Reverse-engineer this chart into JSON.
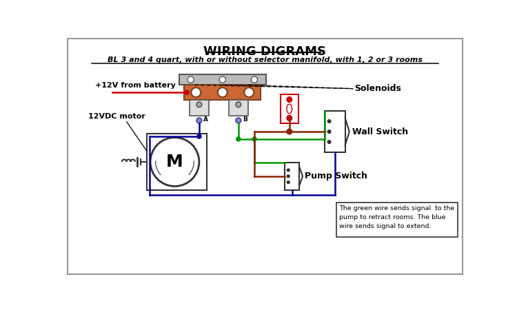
{
  "title": "WIRING DIGRAMS",
  "subtitle": "BL 3 and 4 quart, with or without selector manifold, with 1, 2 or 3 rooms",
  "bg_color": "#ffffff",
  "note_text": "The green wire sends signal  to the\npump to retract rooms. The blue\nwire sends signal to extend.",
  "label_battery": "+12V from battery",
  "label_solenoids": "Solenoids",
  "label_motor": "12VDC motor",
  "label_wall": "Wall Switch",
  "label_pump": "Pump Switch",
  "label_A": "A",
  "label_B": "B",
  "label_M": "M",
  "red_color": "#cc0000",
  "green_color": "#009900",
  "blue_color": "#000099",
  "dark_red_color": "#882200",
  "solenoid_body_color": "#cc6633",
  "gray_color": "#bbbbbb",
  "dark_gray": "#555555"
}
